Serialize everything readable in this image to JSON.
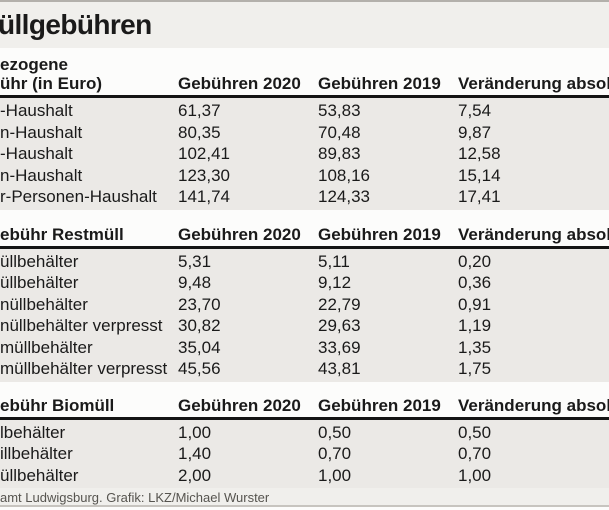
{
  "title": "üllgebühren",
  "footer": "amt Ludwigsburg. Grafik: LKZ/Michael Wurster",
  "columns": [
    "Gebühren 2020",
    "Gebühren 2019",
    "Veränderung absolut"
  ],
  "colors": {
    "top_rule": "#b3b0ab",
    "title_band_bg": "#f0efec",
    "header_band_bg": "#fcfcfb",
    "data_block_bg": "#ebe9e6",
    "section_rule": "#141414",
    "footer_text": "#56544f",
    "bottom_rule": "#c7c4bf",
    "text": "#1a1a1a"
  },
  "chart_data": [
    {
      "type": "table",
      "section_title_lines": [
        "ezogene",
        "ühr (in Euro)"
      ],
      "columns": [
        "Gebühren 2020",
        "Gebühren 2019",
        "Veränderung absolut"
      ],
      "rows": [
        [
          "-Haushalt",
          "61,37",
          "53,83",
          "7,54"
        ],
        [
          "n-Haushalt",
          "80,35",
          "70,48",
          "9,87"
        ],
        [
          "-Haushalt",
          "102,41",
          "89,83",
          "12,58"
        ],
        [
          "n-Haushalt",
          "123,30",
          "108,16",
          "15,14"
        ],
        [
          "r-Personen-Haushalt",
          "141,74",
          "124,33",
          "17,41"
        ]
      ]
    },
    {
      "type": "table",
      "section_title_lines": [
        "ebühr Restmüll"
      ],
      "columns": [
        "Gebühren 2020",
        "Gebühren 2019",
        "Veränderung absolut"
      ],
      "rows": [
        [
          "üllbehälter",
          "5,31",
          "5,11",
          "0,20"
        ],
        [
          "üllbehälter",
          "9,48",
          "9,12",
          "0,36"
        ],
        [
          "nüllbehälter",
          "23,70",
          "22,79",
          "0,91"
        ],
        [
          "nüllbehälter verpresst",
          "30,82",
          "29,63",
          "1,19"
        ],
        [
          "müllbehälter",
          "35,04",
          "33,69",
          "1,35"
        ],
        [
          "müllbehälter verpresst",
          "45,56",
          "43,81",
          "1,75"
        ]
      ]
    },
    {
      "type": "table",
      "section_title_lines": [
        "ebühr Biomüll"
      ],
      "columns": [
        "Gebühren 2020",
        "Gebühren 2019",
        "Veränderung absolut"
      ],
      "rows": [
        [
          "lbehälter",
          "1,00",
          "0,50",
          "0,50"
        ],
        [
          "illbehälter",
          "1,40",
          "0,70",
          "0,70"
        ],
        [
          "üllbehälter",
          "2,00",
          "1,00",
          "1,00"
        ]
      ]
    }
  ]
}
